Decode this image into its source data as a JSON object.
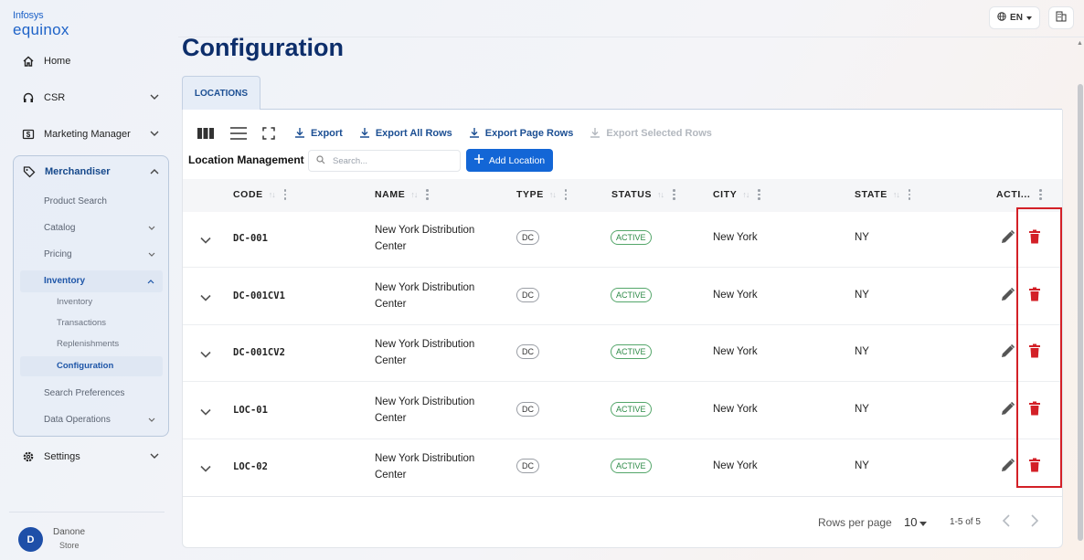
{
  "brand": {
    "line1": "Infosys",
    "line2": "equinox"
  },
  "sidebar": {
    "home": "Home",
    "csr": "CSR",
    "marketing": "Marketing Manager",
    "merchandiser": "Merchandiser",
    "merch_items": {
      "product_search": "Product Search",
      "catalog": "Catalog",
      "pricing": "Pricing",
      "inventory": "Inventory",
      "inventory_items": [
        "Inventory",
        "Transactions",
        "Replenishments",
        "Configuration"
      ],
      "search_preferences": "Search Preferences",
      "data_operations": "Data Operations"
    },
    "settings": "Settings",
    "user": {
      "initial": "D",
      "name": "Danone",
      "store": "Store"
    }
  },
  "topbar": {
    "language": "EN"
  },
  "page": {
    "title": "Configuration",
    "tab": "LOCATIONS"
  },
  "toolbar": {
    "export": "Export",
    "export_all": "Export All Rows",
    "export_page": "Export Page Rows",
    "export_selected": "Export Selected Rows"
  },
  "section": {
    "title": "Location Management",
    "search_placeholder": "Search...",
    "add_button": "Add Location"
  },
  "table": {
    "columns": [
      "CODE",
      "NAME",
      "TYPE",
      "STATUS",
      "CITY",
      "STATE",
      "ACTI..."
    ],
    "rows": [
      {
        "code": "DC-001",
        "name": "New York Distribution Center",
        "type": "DC",
        "status": "ACTIVE",
        "city": "New York",
        "state": "NY"
      },
      {
        "code": "DC-001CV1",
        "name": "New York Distribution Center",
        "type": "DC",
        "status": "ACTIVE",
        "city": "New York",
        "state": "NY"
      },
      {
        "code": "DC-001CV2",
        "name": "New York Distribution Center",
        "type": "DC",
        "status": "ACTIVE",
        "city": "New York",
        "state": "NY"
      },
      {
        "code": "LOC-01",
        "name": "New York Distribution Center",
        "type": "DC",
        "status": "ACTIVE",
        "city": "New York",
        "state": "NY"
      },
      {
        "code": "LOC-02",
        "name": "New York Distribution Center",
        "type": "DC",
        "status": "ACTIVE",
        "city": "New York",
        "state": "NY"
      }
    ]
  },
  "pagination": {
    "rows_per_page_label": "Rows per page",
    "rows_per_page": "10",
    "range": "1-5 of 5"
  },
  "colors": {
    "primary": "#1366d6",
    "title": "#0d2e6b",
    "delete": "#d32027",
    "active": "#2d8a47"
  }
}
